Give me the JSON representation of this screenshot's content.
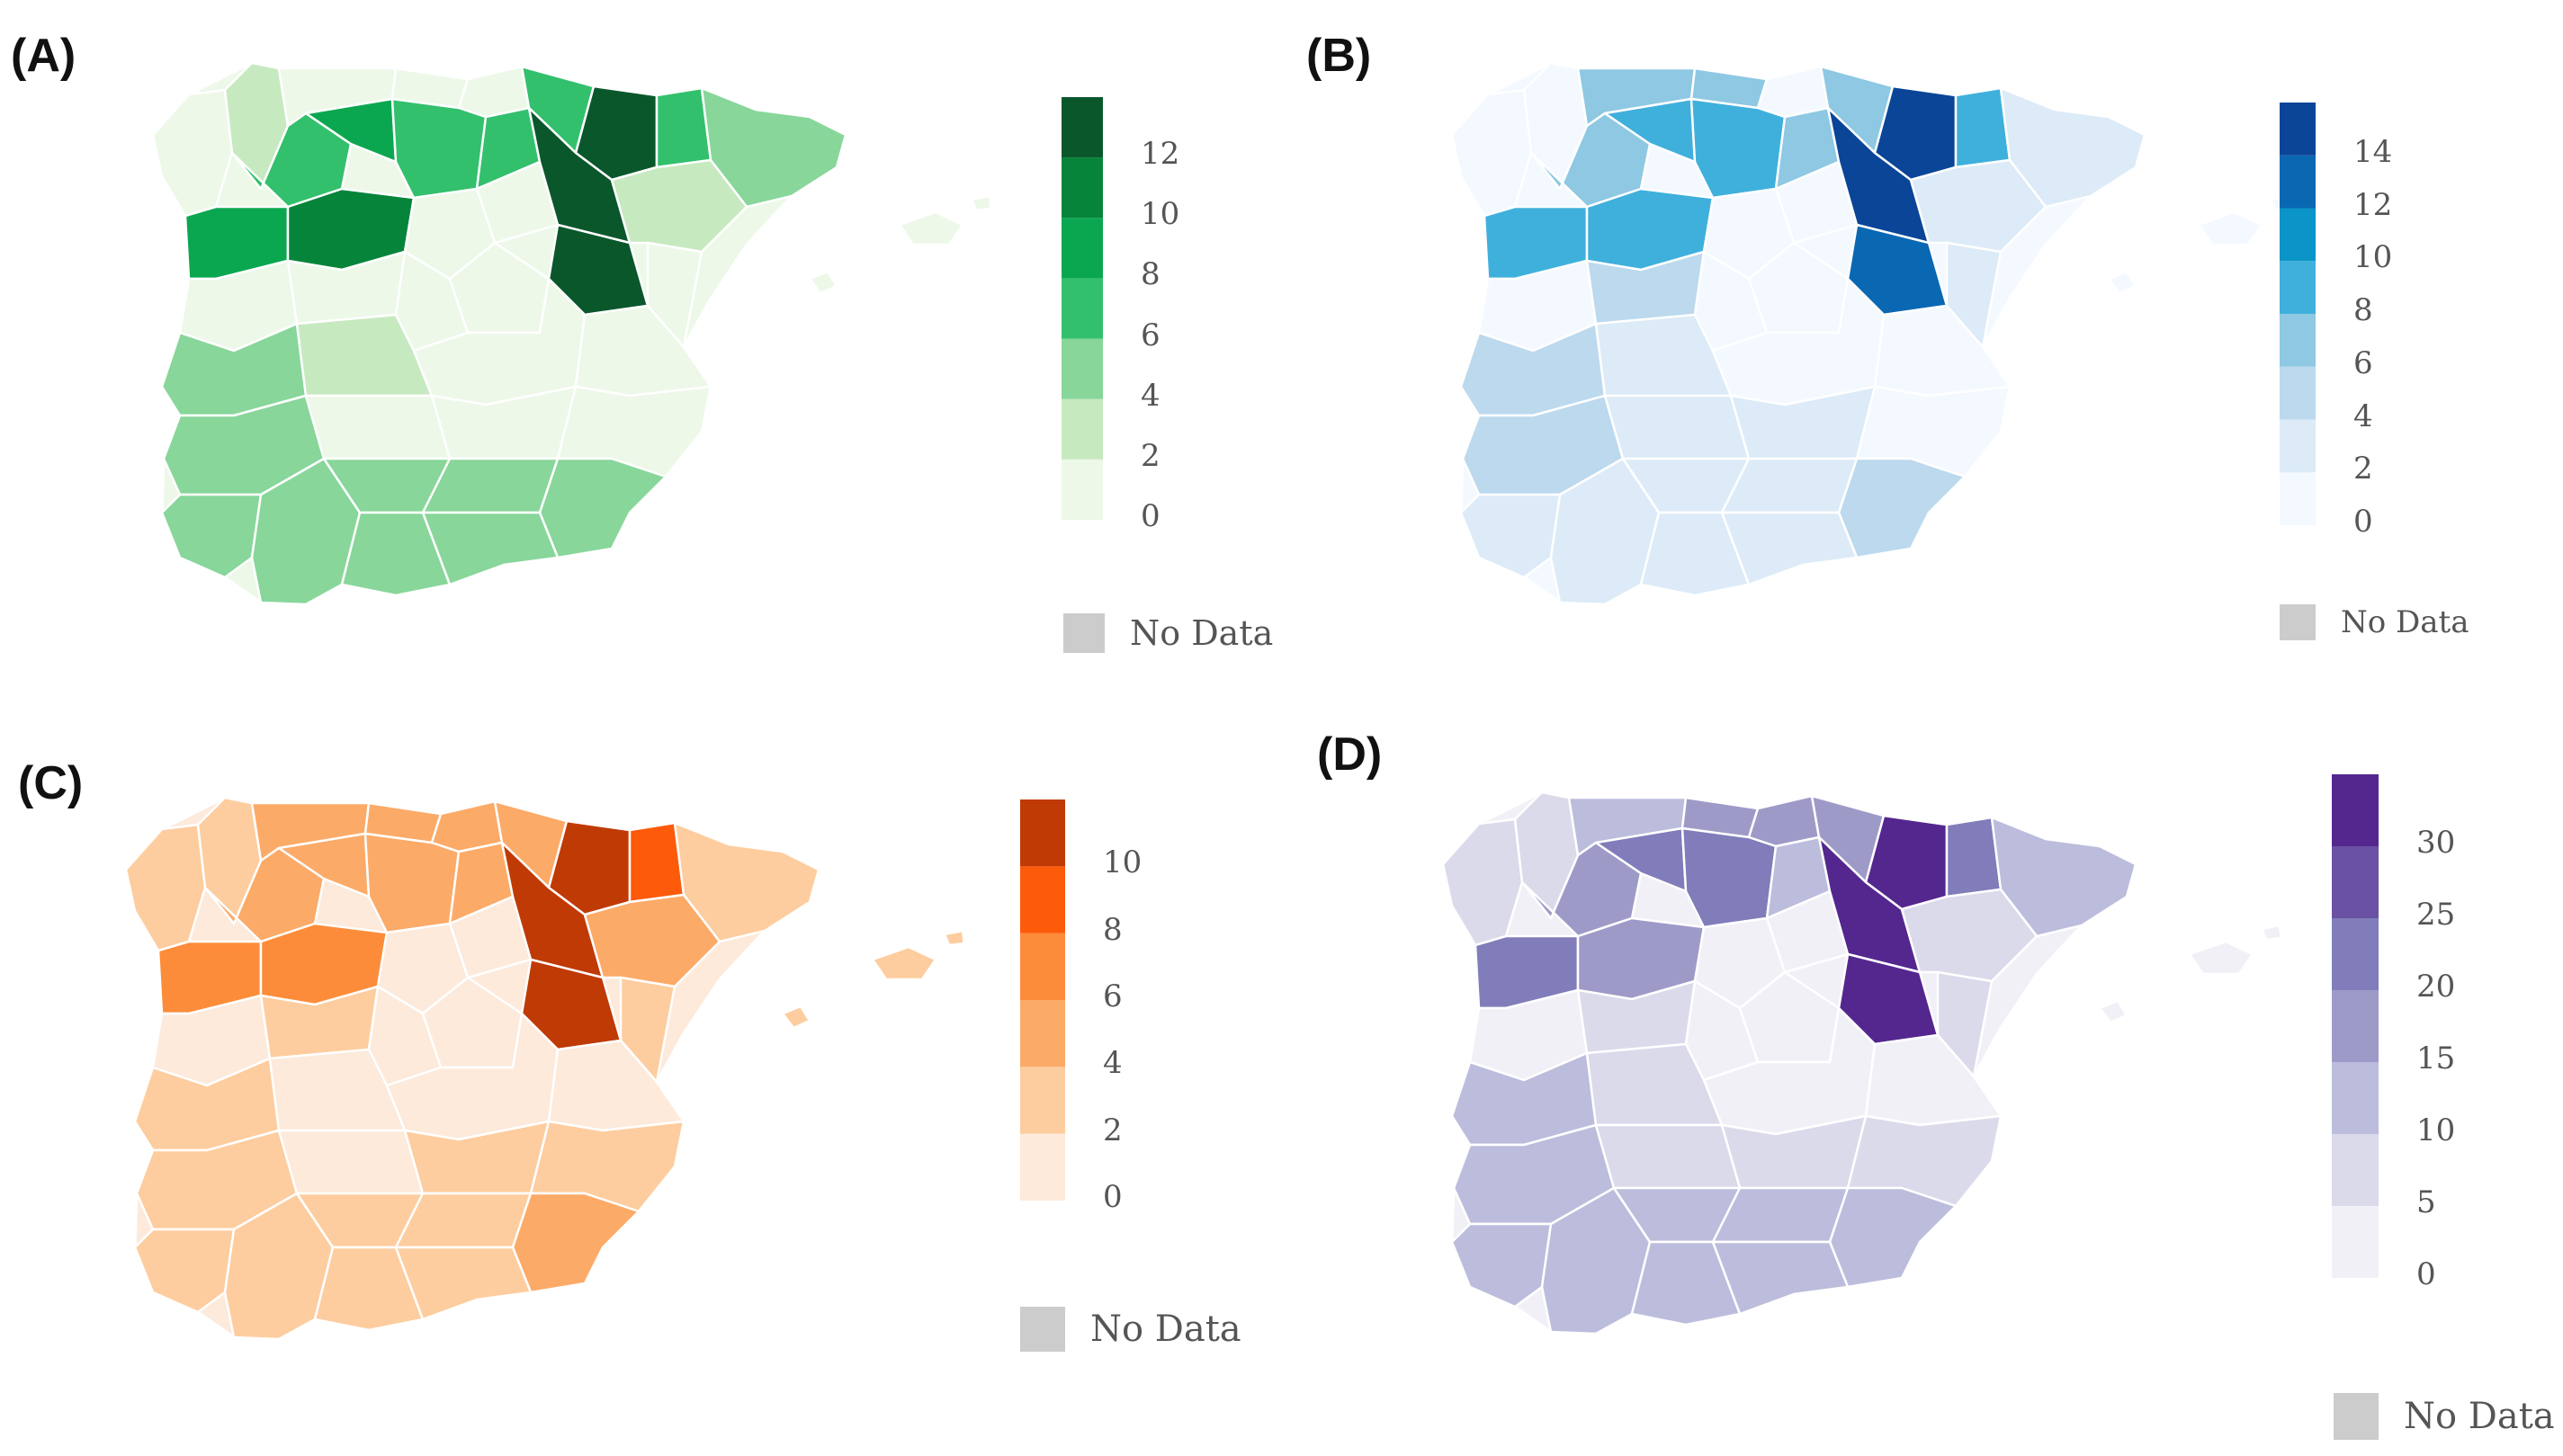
{
  "figure": {
    "title": "",
    "panels": [
      {
        "label": "(A)",
        "scheme": "Greens",
        "legend": {
          "ticks": [
            "0",
            "2",
            "4",
            "6",
            "8",
            "10",
            "12"
          ],
          "bins": [
            {
              "from": 0,
              "to": 2,
              "color": "#edf8e9"
            },
            {
              "from": 2,
              "to": 4,
              "color": "#c7e9c0"
            },
            {
              "from": 4,
              "to": 6,
              "color": "#88d69a"
            },
            {
              "from": 6,
              "to": 8,
              "color": "#33c06d"
            },
            {
              "from": 8,
              "to": 10,
              "color": "#0ba750"
            },
            {
              "from": 10,
              "to": 12,
              "color": "#06843a"
            },
            {
              "from": 12,
              "to": 14,
              "color": "#0a572c"
            }
          ],
          "no_data_label": "No Data",
          "no_data_color": "#cccccc"
        }
      },
      {
        "label": "(B)",
        "scheme": "Blues",
        "legend": {
          "ticks": [
            "0",
            "2",
            "4",
            "6",
            "8",
            "10",
            "12",
            "14"
          ],
          "bins": [
            {
              "from": 0,
              "to": 2,
              "color": "#f3f9ff"
            },
            {
              "from": 2,
              "to": 4,
              "color": "#dcebf7"
            },
            {
              "from": 4,
              "to": 6,
              "color": "#bcd9ee"
            },
            {
              "from": 6,
              "to": 8,
              "color": "#8ec8e3"
            },
            {
              "from": 8,
              "to": 10,
              "color": "#3fb0dc"
            },
            {
              "from": 10,
              "to": 12,
              "color": "#0a94c7"
            },
            {
              "from": 12,
              "to": 14,
              "color": "#0a68b3"
            },
            {
              "from": 14,
              "to": 16,
              "color": "#0a4598"
            }
          ],
          "no_data_label": "No Data",
          "no_data_color": "#cccccc"
        }
      },
      {
        "label": "(C)",
        "scheme": "Oranges",
        "legend": {
          "ticks": [
            "0",
            "2",
            "4",
            "6",
            "8",
            "10"
          ],
          "bins": [
            {
              "from": 0,
              "to": 2,
              "color": "#fdeadb"
            },
            {
              "from": 2,
              "to": 4,
              "color": "#fdcd9f"
            },
            {
              "from": 4,
              "to": 6,
              "color": "#fcaa68"
            },
            {
              "from": 6,
              "to": 8,
              "color": "#fd8c3a"
            },
            {
              "from": 8,
              "to": 10,
              "color": "#fd5a0a"
            },
            {
              "from": 10,
              "to": 12,
              "color": "#c03a05"
            }
          ],
          "no_data_label": "No Data",
          "no_data_color": "#cccccc"
        }
      },
      {
        "label": "(D)",
        "scheme": "Purples",
        "legend": {
          "ticks": [
            "0",
            "5",
            "10",
            "15",
            "20",
            "25",
            "30"
          ],
          "bins": [
            {
              "from": 0,
              "to": 5,
              "color": "#f2f0f7"
            },
            {
              "from": 5,
              "to": 10,
              "color": "#dadaeb"
            },
            {
              "from": 10,
              "to": 15,
              "color": "#bcbddc"
            },
            {
              "from": 15,
              "to": 20,
              "color": "#9e9ac8"
            },
            {
              "from": 20,
              "to": 25,
              "color": "#807dba"
            },
            {
              "from": 25,
              "to": 30,
              "color": "#6a51a3"
            },
            {
              "from": 30,
              "to": 35,
              "color": "#54278f"
            }
          ],
          "no_data_label": "No Data",
          "no_data_color": "#cccccc"
        }
      }
    ]
  }
}
